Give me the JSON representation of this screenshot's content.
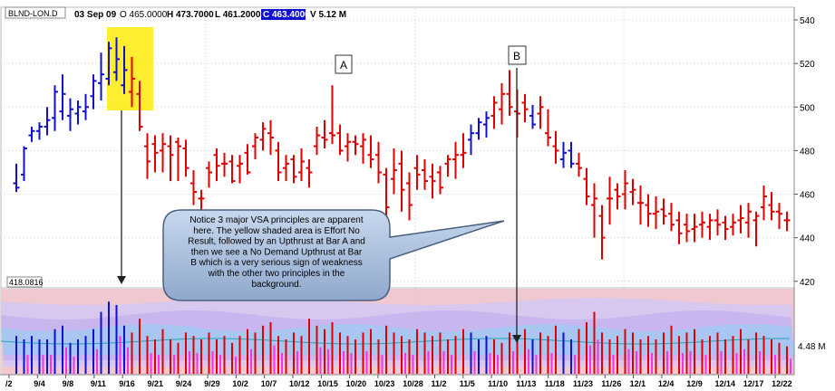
{
  "header": {
    "symbol": "BLND-LON.D",
    "date": "03 Sep 09",
    "open": "O 465.0000",
    "high": "H 473.7000",
    "low": "L 461.2000",
    "close": "C 463.4000",
    "volume": "V 5.12 M"
  },
  "annotations": {
    "label_a": "A",
    "label_b": "B",
    "callout": [
      "Notice 3 major VSA principles are apparent",
      "here. The yellow shaded area is Effort No",
      "Result, followed by an Upthrust at Bar A and",
      "then we see a No Demand Upthrust at Bar",
      "B which is a very serious sign of weakness",
      "with the other two principles in the",
      "background."
    ]
  },
  "colors": {
    "up": "#1010d0",
    "down": "#e00000",
    "highlight": "#ffee30",
    "close_box": "#1010d0",
    "band_bg": "#f0c8d0",
    "band_light": "#d8c8f0",
    "callout_fill": "#a8c0e0"
  },
  "chart_data": [
    {
      "type": "ohlc",
      "name": "price",
      "yaxis_ticks": [
        420,
        440,
        460,
        480,
        500,
        520,
        540
      ],
      "ylim": [
        417,
        545
      ],
      "min_label": "418.0816",
      "bars": [
        [
          465,
          474,
          461,
          463,
          "up"
        ],
        [
          469,
          482,
          466,
          481,
          "up"
        ],
        [
          487,
          491,
          484,
          489,
          "up"
        ],
        [
          489,
          493,
          485,
          491,
          "up"
        ],
        [
          491,
          500,
          487,
          494,
          "up"
        ],
        [
          495,
          510,
          489,
          507,
          "up"
        ],
        [
          498,
          515,
          494,
          506,
          "up"
        ],
        [
          496,
          504,
          489,
          499,
          "up"
        ],
        [
          497,
          503,
          492,
          500,
          "up"
        ],
        [
          498,
          506,
          494,
          500,
          "up"
        ],
        [
          505,
          515,
          499,
          512,
          "up"
        ],
        [
          511,
          525,
          503,
          515,
          "up"
        ],
        [
          513,
          530,
          510,
          527,
          "up"
        ],
        [
          516,
          532,
          512,
          522,
          "up"
        ],
        [
          510,
          528,
          506,
          517,
          "up"
        ],
        [
          507,
          523,
          500,
          513,
          "down"
        ],
        [
          506,
          512,
          489,
          491,
          "down"
        ],
        [
          482,
          488,
          467,
          475,
          "down"
        ],
        [
          483,
          487,
          470,
          479,
          "down"
        ],
        [
          480,
          488,
          470,
          483,
          "down"
        ],
        [
          482,
          487,
          466,
          478,
          "down"
        ],
        [
          484,
          486,
          466,
          482,
          "down"
        ],
        [
          481,
          485,
          468,
          472,
          "down"
        ],
        [
          465,
          471,
          455,
          461,
          "down"
        ],
        [
          458,
          462,
          452,
          458,
          "down"
        ],
        [
          472,
          475,
          463,
          470,
          "down"
        ],
        [
          478,
          481,
          466,
          473,
          "down"
        ],
        [
          474,
          479,
          468,
          474,
          "down"
        ],
        [
          475,
          478,
          465,
          466,
          "down"
        ],
        [
          473,
          478,
          465,
          474,
          "down"
        ],
        [
          479,
          483,
          469,
          470,
          "down"
        ],
        [
          482,
          488,
          476,
          486,
          "down"
        ],
        [
          485,
          493,
          480,
          490,
          "down"
        ],
        [
          488,
          494,
          478,
          486,
          "down"
        ],
        [
          480,
          484,
          466,
          470,
          "down"
        ],
        [
          472,
          478,
          466,
          474,
          "down"
        ],
        [
          476,
          478,
          465,
          468,
          "down"
        ],
        [
          470,
          481,
          466,
          475,
          "down"
        ],
        [
          472,
          476,
          463,
          470,
          "down"
        ],
        [
          482,
          491,
          478,
          487,
          "down"
        ],
        [
          486,
          494,
          481,
          485,
          "down"
        ],
        [
          488,
          510,
          483,
          487,
          "down"
        ],
        [
          488,
          492,
          478,
          480,
          "down"
        ],
        [
          482,
          488,
          475,
          484,
          "down"
        ],
        [
          484,
          487,
          478,
          483,
          "down"
        ],
        [
          482,
          488,
          474,
          485,
          "down"
        ],
        [
          478,
          487,
          472,
          476,
          "down"
        ],
        [
          478,
          484,
          465,
          470,
          "down"
        ],
        [
          469,
          472,
          450,
          454,
          "down"
        ],
        [
          467,
          481,
          460,
          471,
          "down"
        ],
        [
          474,
          480,
          452,
          462,
          "down"
        ],
        [
          465,
          470,
          448,
          455,
          "down"
        ],
        [
          472,
          478,
          462,
          469,
          "down"
        ],
        [
          471,
          476,
          462,
          466,
          "down"
        ],
        [
          468,
          474,
          458,
          466,
          "down"
        ],
        [
          470,
          473,
          460,
          463,
          "down"
        ],
        [
          474,
          478,
          468,
          476,
          "down"
        ],
        [
          476,
          484,
          467,
          478,
          "down"
        ],
        [
          478,
          488,
          472,
          479,
          "down"
        ],
        [
          485,
          492,
          478,
          488,
          "up"
        ],
        [
          488,
          495,
          485,
          493,
          "up"
        ],
        [
          492,
          498,
          486,
          495,
          "up"
        ],
        [
          496,
          505,
          490,
          502,
          "down"
        ],
        [
          499,
          511,
          492,
          506,
          "down"
        ],
        [
          506,
          517,
          496,
          500,
          "down"
        ],
        [
          498,
          508,
          486,
          497,
          "down"
        ],
        [
          502,
          506,
          493,
          499,
          "down"
        ],
        [
          496,
          501,
          490,
          492,
          "up"
        ],
        [
          497,
          505,
          490,
          500,
          "down"
        ],
        [
          488,
          499,
          482,
          486,
          "down"
        ],
        [
          482,
          489,
          474,
          480,
          "down"
        ],
        [
          476,
          484,
          472,
          479,
          "up"
        ],
        [
          480,
          484,
          472,
          474,
          "up"
        ],
        [
          474,
          479,
          468,
          472,
          "down"
        ],
        [
          467,
          472,
          455,
          459,
          "down"
        ],
        [
          455,
          465,
          440,
          458,
          "down"
        ],
        [
          450,
          455,
          430,
          440,
          "down"
        ],
        [
          458,
          468,
          446,
          458,
          "down"
        ],
        [
          462,
          465,
          453,
          459,
          "down"
        ],
        [
          460,
          471,
          453,
          465,
          "down"
        ],
        [
          461,
          467,
          455,
          462,
          "down"
        ],
        [
          456,
          464,
          446,
          456,
          "down"
        ],
        [
          455,
          460,
          445,
          451,
          "down"
        ],
        [
          451,
          459,
          444,
          452,
          "down"
        ],
        [
          453,
          458,
          446,
          450,
          "down"
        ],
        [
          451,
          456,
          443,
          446,
          "down"
        ],
        [
          448,
          452,
          437,
          442,
          "down"
        ],
        [
          446,
          451,
          438,
          443,
          "down"
        ],
        [
          444,
          451,
          438,
          445,
          "down"
        ],
        [
          446,
          452,
          440,
          447,
          "down"
        ],
        [
          445,
          451,
          439,
          448,
          "down"
        ],
        [
          448,
          453,
          441,
          446,
          "down"
        ],
        [
          447,
          450,
          439,
          444,
          "down"
        ],
        [
          445,
          451,
          441,
          447,
          "down"
        ],
        [
          448,
          455,
          442,
          449,
          "down"
        ],
        [
          447,
          456,
          440,
          452,
          "down"
        ],
        [
          448,
          452,
          436,
          450,
          "down"
        ],
        [
          454,
          464,
          448,
          459,
          "down"
        ],
        [
          455,
          461,
          448,
          452,
          "down"
        ],
        [
          452,
          456,
          444,
          451,
          "down"
        ],
        [
          448,
          452,
          443,
          448,
          "down"
        ]
      ]
    },
    {
      "type": "bar",
      "name": "volume",
      "ytick_label": "4.48 M",
      "values": [
        1.1,
        1.0,
        1.1,
        1.0,
        1.0,
        1.3,
        1.4,
        0.9,
        1.0,
        1.1,
        1.3,
        1.8,
        2.1,
        2.0,
        1.4,
        1.2,
        1.6,
        1.1,
        1.0,
        1.3,
        1.0,
        0.9,
        1.2,
        1.1,
        1.0,
        1.2,
        1.0,
        1.1,
        0.9,
        1.1,
        1.3,
        1.2,
        1.4,
        1.5,
        1.1,
        1.0,
        1.2,
        1.1,
        1.6,
        1.4,
        1.3,
        1.5,
        1.2,
        1.1,
        1.0,
        1.2,
        1.3,
        1.0,
        1.4,
        1.2,
        1.1,
        1.0,
        1.3,
        1.2,
        1.1,
        1.2,
        1.0,
        1.1,
        1.3,
        1.2,
        1.0,
        1.1,
        1.0,
        0.9,
        1.2,
        1.1,
        1.3,
        1.0,
        1.2,
        1.1,
        1.4,
        1.2,
        1.0,
        1.3,
        1.5,
        1.8,
        1.2,
        1.0,
        1.1,
        1.3,
        1.2,
        1.0,
        1.1,
        1.0,
        1.2,
        1.4,
        1.1,
        1.2,
        1.3,
        1.0,
        1.1,
        1.2,
        1.0,
        1.1,
        1.3,
        1.0,
        1.2,
        1.1,
        1.0,
        0.9,
        0.8
      ],
      "pink": [
        0,
        1,
        0,
        1,
        1,
        0,
        1,
        1,
        0,
        0,
        1,
        0,
        0,
        1,
        1,
        0,
        0,
        1,
        1,
        0,
        1,
        0,
        1,
        1,
        0,
        1,
        1,
        0,
        1,
        0,
        1,
        0,
        0,
        1,
        1,
        0,
        1,
        0,
        0,
        1,
        1,
        0,
        1,
        1,
        0,
        1,
        0,
        1,
        0,
        0,
        1,
        1,
        0,
        1,
        0,
        1,
        1,
        0,
        0,
        1,
        0,
        1,
        1,
        0,
        1,
        0,
        1,
        1,
        0,
        1,
        0,
        0,
        1,
        0,
        1,
        1,
        0,
        1,
        0,
        1,
        1,
        0,
        1,
        0,
        1,
        0,
        1,
        1,
        0,
        1,
        0,
        1,
        0,
        1,
        1,
        0,
        1,
        0,
        1,
        0,
        1
      ]
    },
    {
      "type": "axis",
      "name": "dates",
      "labels": [
        "/2",
        "9/4",
        "9/8",
        "9/11",
        "9/16",
        "9/21",
        "9/24",
        "9/29",
        "10/2",
        "10/7",
        "10/12",
        "10/15",
        "10/20",
        "10/23",
        "10/28",
        "11/2",
        "11/5",
        "11/10",
        "11/13",
        "11/18",
        "11/23",
        "11/26",
        "12/1",
        "12/4",
        "12/9",
        "12/14",
        "12/17",
        "12/22"
      ]
    }
  ]
}
